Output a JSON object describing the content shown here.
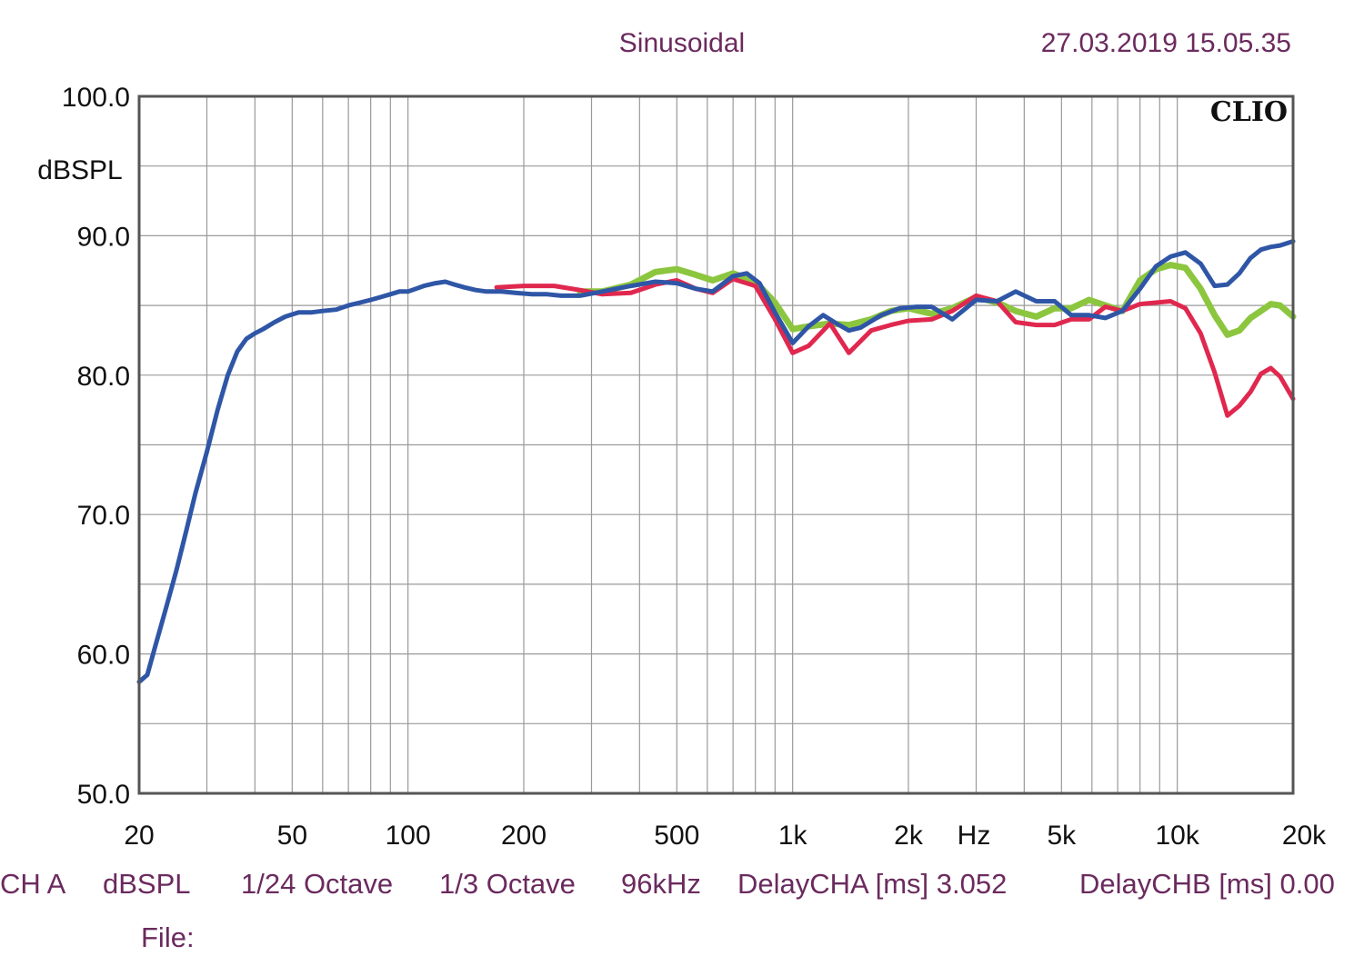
{
  "header": {
    "mode": "Sinusoidal",
    "timestamp": "27.03.2019 15.05.35",
    "brand": "CLIO"
  },
  "chart_data": {
    "type": "line",
    "xscale": "log",
    "xlim": [
      20,
      20000
    ],
    "ylim": [
      50,
      100
    ],
    "grid": true,
    "ylabel": "dBSPL",
    "xlabel": "Hz",
    "y_ticks": [
      {
        "value": 100,
        "label": "100.0"
      },
      {
        "value": 90,
        "label": "90.0"
      },
      {
        "value": 80,
        "label": "80.0"
      },
      {
        "value": 70,
        "label": "70.0"
      },
      {
        "value": 60,
        "label": "60.0"
      },
      {
        "value": 50,
        "label": "50.0"
      }
    ],
    "x_ticks": [
      {
        "value": 20,
        "label": "20"
      },
      {
        "value": 50,
        "label": "50"
      },
      {
        "value": 100,
        "label": "100"
      },
      {
        "value": 200,
        "label": "200"
      },
      {
        "value": 500,
        "label": "500"
      },
      {
        "value": 1000,
        "label": "1k"
      },
      {
        "value": 2000,
        "label": "2k"
      },
      {
        "value": 5000,
        "label": "5k"
      },
      {
        "value": 10000,
        "label": "10k"
      },
      {
        "value": 20000,
        "label": "20k"
      }
    ],
    "series": [
      {
        "color": "#8cc63f",
        "x": [
          280,
          320,
          380,
          440,
          500,
          560,
          620,
          700,
          800,
          900,
          1000,
          1100,
          1250,
          1400,
          1600,
          1800,
          2000,
          2300,
          2600,
          3000,
          3400,
          3800,
          4300,
          4800,
          5300,
          5900,
          6500,
          7200,
          8000,
          8800,
          9600,
          10500,
          11500,
          12500,
          13500,
          14500,
          15500,
          16500,
          17500,
          18500,
          20000
        ],
        "y": [
          86.0,
          86.0,
          86.5,
          87.4,
          87.6,
          87.2,
          86.8,
          87.3,
          86.7,
          85.2,
          83.3,
          83.5,
          83.7,
          83.6,
          84.0,
          84.6,
          84.8,
          84.4,
          84.8,
          85.6,
          85.2,
          84.6,
          84.2,
          84.8,
          84.8,
          85.4,
          85.0,
          84.6,
          86.8,
          87.6,
          87.9,
          87.7,
          86.2,
          84.3,
          82.9,
          83.2,
          84.1,
          84.6,
          85.1,
          85.0,
          84.2
        ]
      },
      {
        "color": "#e0284f",
        "x": [
          170,
          200,
          240,
          280,
          320,
          380,
          440,
          500,
          560,
          620,
          700,
          800,
          900,
          1000,
          1100,
          1250,
          1400,
          1600,
          1800,
          2000,
          2300,
          2600,
          3000,
          3400,
          3800,
          4300,
          4800,
          5300,
          5900,
          6500,
          7200,
          8000,
          8800,
          9600,
          10500,
          11500,
          12500,
          13500,
          14500,
          15500,
          16500,
          17500,
          18500,
          20000
        ],
        "y": [
          86.3,
          86.4,
          86.4,
          86.1,
          85.8,
          85.9,
          86.5,
          86.8,
          86.2,
          85.9,
          86.9,
          86.4,
          84.0,
          81.6,
          82.1,
          83.7,
          81.6,
          83.2,
          83.6,
          83.9,
          84.0,
          84.6,
          85.7,
          85.3,
          83.8,
          83.6,
          83.6,
          84.0,
          84.0,
          84.9,
          84.6,
          85.1,
          85.2,
          85.3,
          84.8,
          83.0,
          80.2,
          77.1,
          77.8,
          78.8,
          80.1,
          80.5,
          79.9,
          78.3
        ]
      },
      {
        "color": "#2f56a6",
        "x": [
          20,
          21,
          22,
          23.5,
          25,
          26.5,
          28,
          30,
          32,
          34,
          36,
          38,
          40,
          42,
          45,
          48,
          52,
          56,
          60,
          65,
          70,
          75,
          80,
          85,
          90,
          95,
          100,
          105,
          110,
          118,
          125,
          132,
          140,
          150,
          160,
          175,
          190,
          210,
          230,
          250,
          280,
          320,
          380,
          440,
          500,
          560,
          620,
          700,
          760,
          820,
          900,
          1000,
          1100,
          1200,
          1300,
          1400,
          1500,
          1700,
          1900,
          2100,
          2300,
          2600,
          3000,
          3400,
          3800,
          4300,
          4800,
          5300,
          5900,
          6500,
          7200,
          8000,
          8800,
          9600,
          10500,
          11500,
          12500,
          13500,
          14500,
          15500,
          16500,
          17500,
          18500,
          20000
        ],
        "y": [
          58.0,
          58.5,
          60.5,
          63.3,
          66.0,
          68.8,
          71.5,
          74.5,
          77.5,
          80.0,
          81.7,
          82.6,
          83.0,
          83.3,
          83.8,
          84.2,
          84.5,
          84.5,
          84.6,
          84.7,
          85.0,
          85.2,
          85.4,
          85.6,
          85.8,
          86.0,
          86.0,
          86.2,
          86.4,
          86.6,
          86.7,
          86.5,
          86.3,
          86.1,
          86.0,
          86.0,
          85.9,
          85.8,
          85.8,
          85.7,
          85.7,
          86.0,
          86.4,
          86.7,
          86.6,
          86.2,
          86.0,
          87.1,
          87.3,
          86.6,
          84.5,
          82.3,
          83.5,
          84.3,
          83.7,
          83.2,
          83.4,
          84.3,
          84.8,
          84.9,
          84.9,
          84.0,
          85.4,
          85.3,
          86.0,
          85.3,
          85.3,
          84.3,
          84.3,
          84.1,
          84.6,
          86.2,
          87.8,
          88.5,
          88.8,
          88.0,
          86.4,
          86.5,
          87.3,
          88.4,
          89.0,
          89.2,
          89.3,
          89.6
        ]
      }
    ]
  },
  "footer": {
    "line1": [
      "CH A",
      "dBSPL",
      "1/24 Octave",
      "1/3 Octave",
      "96kHz",
      "DelayCHA [ms] 3.052",
      "DelayCHB [ms] 0.00"
    ],
    "file_label": "File:"
  }
}
